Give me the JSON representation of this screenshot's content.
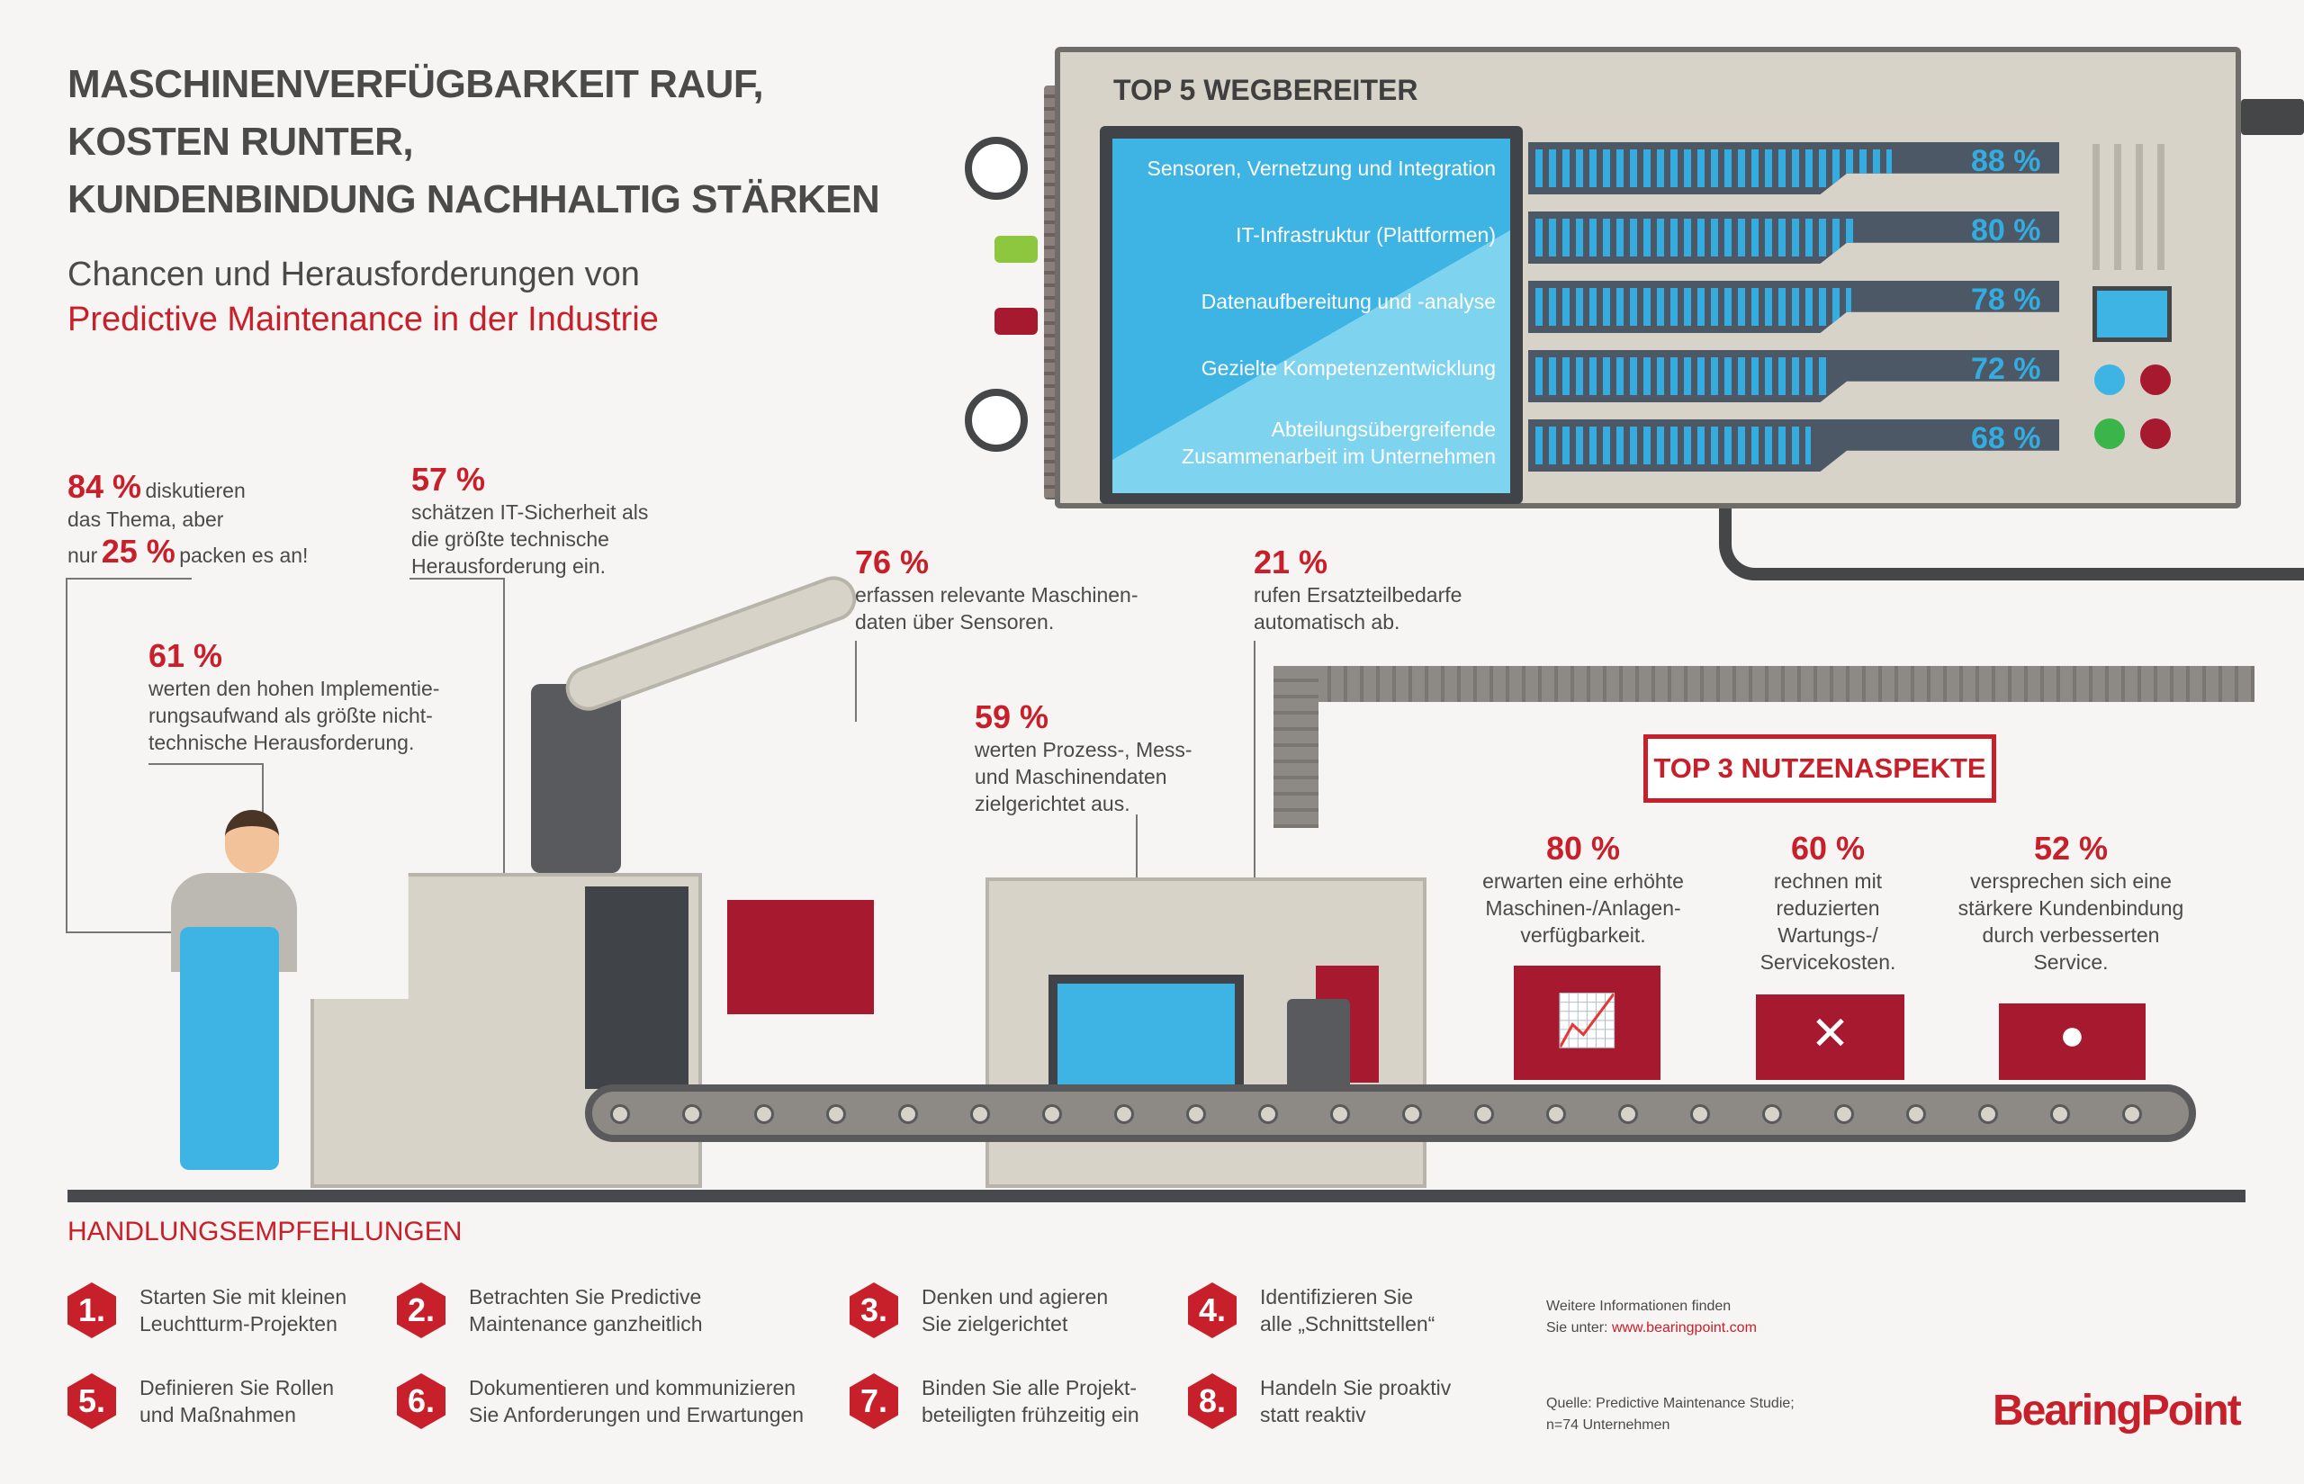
{
  "header": {
    "title_lines": [
      "MASCHINENVERFÜGBARKEIT RAUF,",
      "KOSTEN RUNTER,",
      "KUNDENBINDUNG NACHHALTIG STÄRKEN"
    ],
    "subtitle_line1": "Chancen und Herausforderungen von",
    "subtitle_line2": "Predictive Maintenance in der Industrie"
  },
  "top5": {
    "title": "TOP 5 WEGBEREITER",
    "items": [
      {
        "label": "Sensoren, Vernetzung und Integration",
        "value": 88,
        "value_label": "88 %"
      },
      {
        "label": "IT-Infrastruktur (Plattformen)",
        "value": 80,
        "value_label": "80 %"
      },
      {
        "label": "Datenaufbereitung und -analyse",
        "value": 78,
        "value_label": "78 %"
      },
      {
        "label": "Gezielte Kompetenzentwicklung",
        "value": 72,
        "value_label": "72 %"
      },
      {
        "label": "Abteilungsübergreifende Zusammenarbeit im Unternehmen",
        "value": 68,
        "value_label": "68 %"
      }
    ]
  },
  "stats": {
    "s84": {
      "num": "84 %",
      "text1": "diskutieren",
      "text2": "das Thema, aber",
      "text3": "nur",
      "num2": "25 %",
      "text4": "packen es an!"
    },
    "s57": {
      "num": "57 %",
      "text": "schätzen IT-Sicherheit als die größte technische Herausforderung ein."
    },
    "s61": {
      "num": "61 %",
      "text": "werten den hohen Implementie-rungsaufwand als größte nicht-technische Herausforderung."
    },
    "s76": {
      "num": "76 %",
      "text": "erfassen relevante Maschinen-daten über Sensoren."
    },
    "s21": {
      "num": "21 %",
      "text": "rufen Ersatzteilbedarfe automatisch ab."
    },
    "s59": {
      "num": "59 %",
      "text": "werten Prozess-, Mess- und Maschinendaten zielgerichtet aus."
    }
  },
  "top3": {
    "title": "TOP 3 NUTZENASPEKTE",
    "items": [
      {
        "num": "80 %",
        "text": "erwarten eine erhöhte Maschinen-/Anlagen-verfügbarkeit.",
        "icon": "chart-icon"
      },
      {
        "num": "60 %",
        "text": "rechnen mit reduzierten Wartungs-/ Servicekosten.",
        "icon": "tools-icon"
      },
      {
        "num": "52 %",
        "text": "versprechen sich eine stärkere Kundenbindung durch verbesserten Service.",
        "icon": "person-icon"
      }
    ]
  },
  "recommendations": {
    "title": "HANDLUNGSEMPFEHLUNGEN",
    "items": [
      {
        "n": "1.",
        "l1": "Starten Sie mit kleinen",
        "l2": "Leuchtturm-Projekten"
      },
      {
        "n": "2.",
        "l1": "Betrachten Sie Predictive",
        "l2": "Maintenance ganzheitlich"
      },
      {
        "n": "3.",
        "l1": "Denken und agieren",
        "l2": "Sie zielgerichtet"
      },
      {
        "n": "4.",
        "l1": "Identifizieren Sie",
        "l2": "alle „Schnittstellen“"
      },
      {
        "n": "5.",
        "l1": "Definieren Sie Rollen",
        "l2": "und Maßnahmen"
      },
      {
        "n": "6.",
        "l1": "Dokumentieren und kommunizieren",
        "l2": "Sie Anforderungen und Erwartungen"
      },
      {
        "n": "7.",
        "l1": "Binden Sie alle Projekt-",
        "l2": "beteiligten frühzeitig ein"
      },
      {
        "n": "8.",
        "l1": "Handeln Sie proaktiv",
        "l2": "statt reaktiv"
      }
    ]
  },
  "footer": {
    "info_line1": "Weitere Informationen finden",
    "info_line2": "Sie unter:",
    "link": "www.bearingpoint.com",
    "source_line1": "Quelle: Predictive Maintenance Studie;",
    "source_line2": "n=74 Unternehmen",
    "logo": "BearingPoint"
  },
  "colors": {
    "accent": "#c8202a",
    "bar": "#34ace0",
    "dark": "#4c5865"
  }
}
